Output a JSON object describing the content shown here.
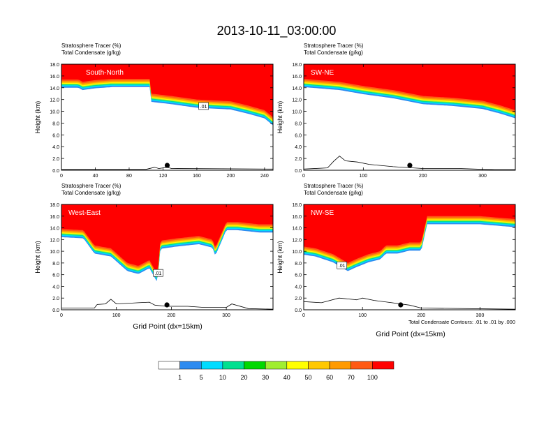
{
  "figure_title": "2013-10-11_03:00:00",
  "panel_label_1": "Stratosphere Tracer   (%)",
  "panel_label_2": "Total Condensate   (g/kg)",
  "y_axis_label": "Height (km)",
  "x_axis_label": "Grid Point (dx=15km)",
  "contour_note": "Total Condensate Contours: .01 to .01 by .000",
  "contour_label": ".01",
  "chart_data": [
    {
      "type": "heatmap",
      "title": "South-North",
      "ylabel": "Height (km)",
      "ylim": [
        0,
        18
      ],
      "yticks": [
        "0.0",
        "2.0",
        "4.0",
        "6.0",
        "8.0",
        "10.0",
        "12.0",
        "14.0",
        "16.0",
        "18.0"
      ],
      "xlim": [
        0,
        250
      ],
      "xticks": [
        "0",
        "40",
        "80",
        "120",
        "160",
        "200",
        "240"
      ],
      "tropopause_x": [
        0,
        20,
        25,
        40,
        60,
        105,
        106,
        130,
        160,
        200,
        220,
        240,
        250
      ],
      "tropopause_y": [
        15.4,
        15.4,
        15.0,
        15.3,
        15.5,
        15.5,
        13.0,
        12.6,
        12.0,
        11.7,
        11.0,
        10.2,
        9.0
      ],
      "terrain_x": [
        0,
        60,
        100,
        110,
        115,
        125,
        130,
        250
      ],
      "terrain_y": [
        0.15,
        0.15,
        0.15,
        0.5,
        0.3,
        0.5,
        0.3,
        0.2
      ],
      "marker_x": 125,
      "contour_label_x": 168,
      "contour_label_y": 10.9
    },
    {
      "type": "heatmap",
      "title": "SW-NE",
      "ylabel": "Height (km)",
      "ylim": [
        0,
        18
      ],
      "yticks": [
        "0.0",
        "2.0",
        "4.0",
        "6.0",
        "8.0",
        "10.0",
        "12.0",
        "14.0",
        "16.0",
        "18.0"
      ],
      "xlim": [
        0,
        355
      ],
      "xticks": [
        "0",
        "100",
        "200",
        "300"
      ],
      "tropopause_x": [
        0,
        60,
        100,
        150,
        200,
        250,
        300,
        330,
        355
      ],
      "tropopause_y": [
        15.5,
        15.0,
        14.3,
        13.6,
        12.6,
        12.3,
        11.8,
        11.0,
        10.2
      ],
      "terrain_x": [
        0,
        40,
        50,
        60,
        70,
        90,
        110,
        150,
        200,
        260,
        320,
        355
      ],
      "terrain_y": [
        0.2,
        0.4,
        1.5,
        2.4,
        1.6,
        1.4,
        1.0,
        0.6,
        0.3,
        0.3,
        0.1,
        0.1
      ],
      "marker_x": 178
    },
    {
      "type": "heatmap",
      "title": "West-East",
      "ylabel": "Height (km)",
      "ylim": [
        0,
        18
      ],
      "yticks": [
        "0.0",
        "2.0",
        "4.0",
        "6.0",
        "8.0",
        "10.0",
        "12.0",
        "14.0",
        "16.0",
        "18.0"
      ],
      "xlim": [
        0,
        385
      ],
      "xticks": [
        "0",
        "100",
        "200",
        "300"
      ],
      "tropopause_x": [
        0,
        40,
        60,
        90,
        120,
        140,
        160,
        175,
        180,
        210,
        250,
        275,
        280,
        300,
        320,
        360,
        385
      ],
      "tropopause_y": [
        13.8,
        13.6,
        11.0,
        10.5,
        8.0,
        7.5,
        8.5,
        6.0,
        11.8,
        12.2,
        12.6,
        12.0,
        10.6,
        15.0,
        15.0,
        14.6,
        14.6
      ],
      "terrain_x": [
        0,
        60,
        65,
        80,
        90,
        100,
        140,
        160,
        170,
        190,
        230,
        260,
        300,
        310,
        340,
        385
      ],
      "terrain_y": [
        0.3,
        0.3,
        0.9,
        1.0,
        1.8,
        1.0,
        1.2,
        1.3,
        0.8,
        0.6,
        0.6,
        0.4,
        0.4,
        1.0,
        0.2,
        0.1
      ],
      "marker_x": 192,
      "contour_label_x": 176,
      "contour_label_y": 6.3
    },
    {
      "type": "heatmap",
      "title": "NW-SE",
      "ylabel": "Height (km)",
      "ylim": [
        0,
        18
      ],
      "yticks": [
        "0.0",
        "2.0",
        "4.0",
        "6.0",
        "8.0",
        "10.0",
        "12.0",
        "14.0",
        "16.0",
        "18.0"
      ],
      "xlim": [
        0,
        360
      ],
      "xticks": [
        "0",
        "100",
        "200",
        "300"
      ],
      "tropopause_x": [
        0,
        20,
        50,
        75,
        90,
        110,
        130,
        140,
        160,
        180,
        200,
        210,
        250,
        300,
        360
      ],
      "tropopause_y": [
        10.8,
        10.5,
        9.5,
        8.0,
        8.7,
        9.5,
        10.0,
        11.0,
        11.0,
        11.5,
        11.5,
        16.0,
        16.0,
        16.0,
        15.5
      ],
      "terrain_x": [
        0,
        30,
        60,
        90,
        100,
        120,
        150,
        180,
        200,
        360
      ],
      "terrain_y": [
        1.4,
        1.2,
        2.0,
        1.7,
        2.0,
        1.6,
        1.2,
        0.8,
        0.3,
        0.1
      ],
      "marker_x": 165,
      "contour_label_x": 65,
      "contour_label_y": 7.6
    }
  ],
  "colorbar": {
    "labels": [
      "1",
      "5",
      "10",
      "20",
      "30",
      "40",
      "50",
      "60",
      "70",
      "100"
    ],
    "colors": [
      "#ffffff",
      "#2e8bf0",
      "#00dcff",
      "#00e090",
      "#00d800",
      "#a0ee30",
      "#ffff00",
      "#ffc800",
      "#ff9a00",
      "#ff5a14",
      "#ff0000"
    ]
  }
}
